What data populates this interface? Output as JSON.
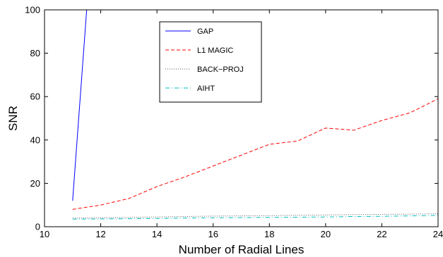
{
  "chart_data": {
    "type": "line",
    "title": "",
    "xlabel": "Number of Radial Lines",
    "ylabel": "SNR",
    "xlim": [
      10,
      24
    ],
    "ylim": [
      0,
      100
    ],
    "xticks": [
      10,
      12,
      14,
      16,
      18,
      20,
      22,
      24
    ],
    "yticks": [
      0,
      20,
      40,
      60,
      80,
      100
    ],
    "grid": false,
    "legend_position": "top-center",
    "series": [
      {
        "name": "GAP",
        "color": "#0000ff",
        "line_style": "solid",
        "x": [
          11,
          11.5
        ],
        "y": [
          12,
          100
        ]
      },
      {
        "name": "L1 MAGIC",
        "color": "#ff0000",
        "line_style": "dashed",
        "x": [
          11,
          12,
          13,
          14,
          15,
          16,
          17,
          18,
          19,
          20,
          21,
          22,
          23,
          24
        ],
        "y": [
          8,
          10,
          13,
          18.5,
          23,
          28,
          33,
          38,
          39.5,
          45.5,
          44.5,
          49,
          52.5,
          59
        ]
      },
      {
        "name": "BACK−PROJ",
        "color": "#555555",
        "line_style": "dotted",
        "x": [
          11,
          12,
          13,
          14,
          15,
          16,
          17,
          18,
          19,
          20,
          21,
          22,
          23,
          24
        ],
        "y": [
          4,
          4.1,
          4.3,
          4.5,
          4.7,
          4.9,
          5.0,
          5.1,
          5.3,
          5.4,
          5.6,
          5.7,
          5.8,
          6.0
        ]
      },
      {
        "name": "AIHT",
        "color": "#00bfbf",
        "line_style": "dashdot",
        "x": [
          11,
          12,
          13,
          14,
          15,
          16,
          17,
          18,
          19,
          20,
          21,
          22,
          23,
          24
        ],
        "y": [
          3.5,
          3.6,
          3.7,
          3.8,
          4.0,
          4.1,
          4.2,
          4.3,
          4.4,
          4.5,
          4.7,
          4.8,
          5.0,
          5.2
        ]
      }
    ]
  }
}
